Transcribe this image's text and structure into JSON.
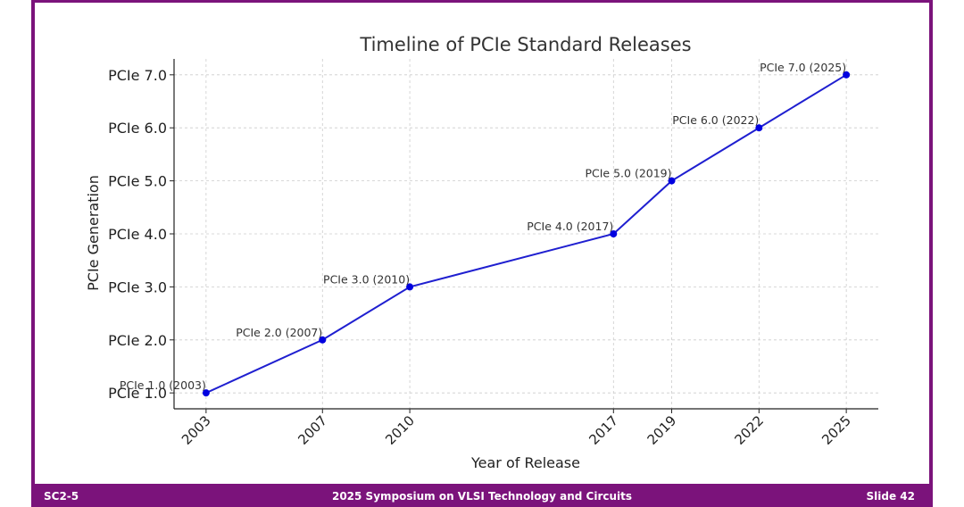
{
  "colors": {
    "frame": "#7b137b",
    "line": "#1f1fd0",
    "marker": "#0000e0",
    "grid": "#cccccc"
  },
  "footer": {
    "left": "SC2-5",
    "center": "2025 Symposium on VLSI Technology and Circuits",
    "right": "Slide 42"
  },
  "chart_data": {
    "type": "line",
    "title": "Timeline of PCIe Standard Releases",
    "xlabel": "Year of Release",
    "ylabel": "PCIe Generation",
    "x": [
      2003,
      2007,
      2010,
      2017,
      2019,
      2022,
      2025
    ],
    "y": [
      1.0,
      2.0,
      3.0,
      4.0,
      5.0,
      6.0,
      7.0
    ],
    "x_tick_labels": [
      "2003",
      "2007",
      "2010",
      "2017",
      "2019",
      "2022",
      "2025"
    ],
    "y_tick_labels": [
      "PCIe 1.0",
      "PCIe 2.0",
      "PCIe 3.0",
      "PCIe 4.0",
      "PCIe 5.0",
      "PCIe 6.0",
      "PCIe 7.0"
    ],
    "annotations": [
      "PCIe 1.0 (2003)",
      "PCIe 2.0 (2007)",
      "PCIe 3.0 (2010)",
      "PCIe 4.0 (2017)",
      "PCIe 5.0 (2019)",
      "PCIe 6.0 (2022)",
      "PCIe 7.0 (2025)"
    ],
    "xlim": [
      2001.9,
      2026.1
    ],
    "ylim": [
      0.7,
      7.3
    ],
    "grid": true,
    "marker": "circle"
  }
}
